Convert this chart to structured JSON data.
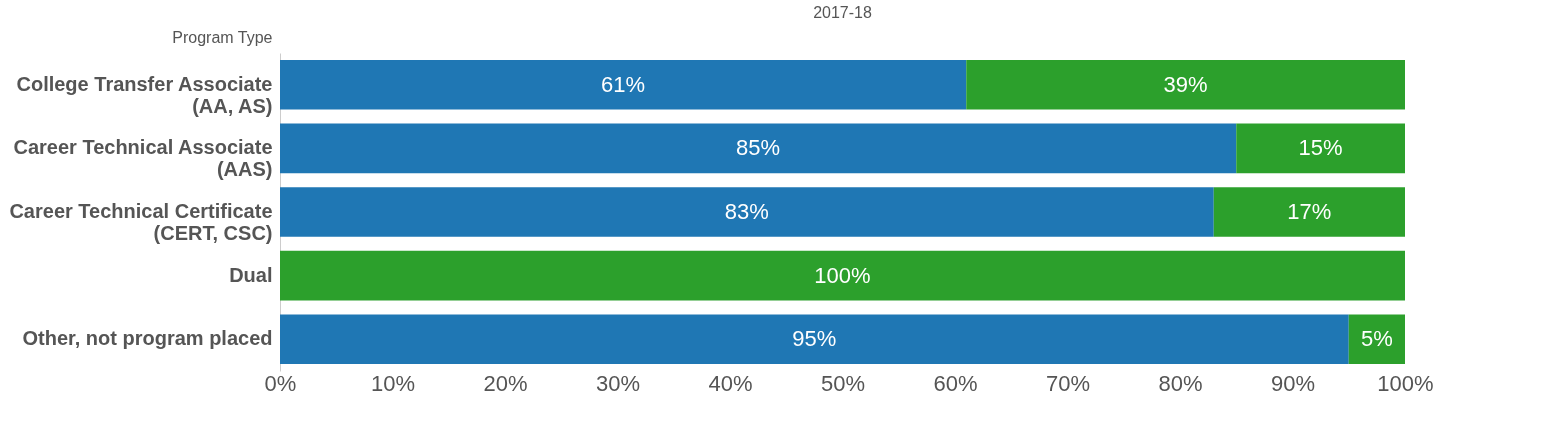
{
  "chart_data": {
    "type": "bar",
    "orientation": "horizontal",
    "stacked": true,
    "title": "2017-18",
    "ylabel": "Program Type",
    "categories": [
      "College Transfer Associate (AA, AS)",
      "Career Technical Associate (AAS)",
      "Career Technical Certificate (CERT, CSC)",
      "Dual",
      "Other, not program placed"
    ],
    "series": [
      {
        "color": "#1f77b4",
        "values": [
          61,
          85,
          83,
          null,
          95
        ],
        "value_labels": [
          "61%",
          "85%",
          "83%",
          null,
          "95%"
        ]
      },
      {
        "color": "#2ca02c",
        "values": [
          39,
          15,
          17,
          100,
          5
        ],
        "value_labels": [
          "39%",
          "15%",
          "17%",
          "100%",
          "5%"
        ]
      }
    ],
    "xlim": [
      0,
      100
    ],
    "xticks": [
      {
        "value": 0,
        "label": "0%"
      },
      {
        "value": 10,
        "label": "10%"
      },
      {
        "value": 20,
        "label": "20%"
      },
      {
        "value": 30,
        "label": "30%"
      },
      {
        "value": 40,
        "label": "40%"
      },
      {
        "value": 50,
        "label": "50%"
      },
      {
        "value": 60,
        "label": "60%"
      },
      {
        "value": 70,
        "label": "70%"
      },
      {
        "value": 80,
        "label": "80%"
      },
      {
        "value": 90,
        "label": "90%"
      },
      {
        "value": 100,
        "label": "100%"
      }
    ],
    "grid": false,
    "legend": false
  }
}
